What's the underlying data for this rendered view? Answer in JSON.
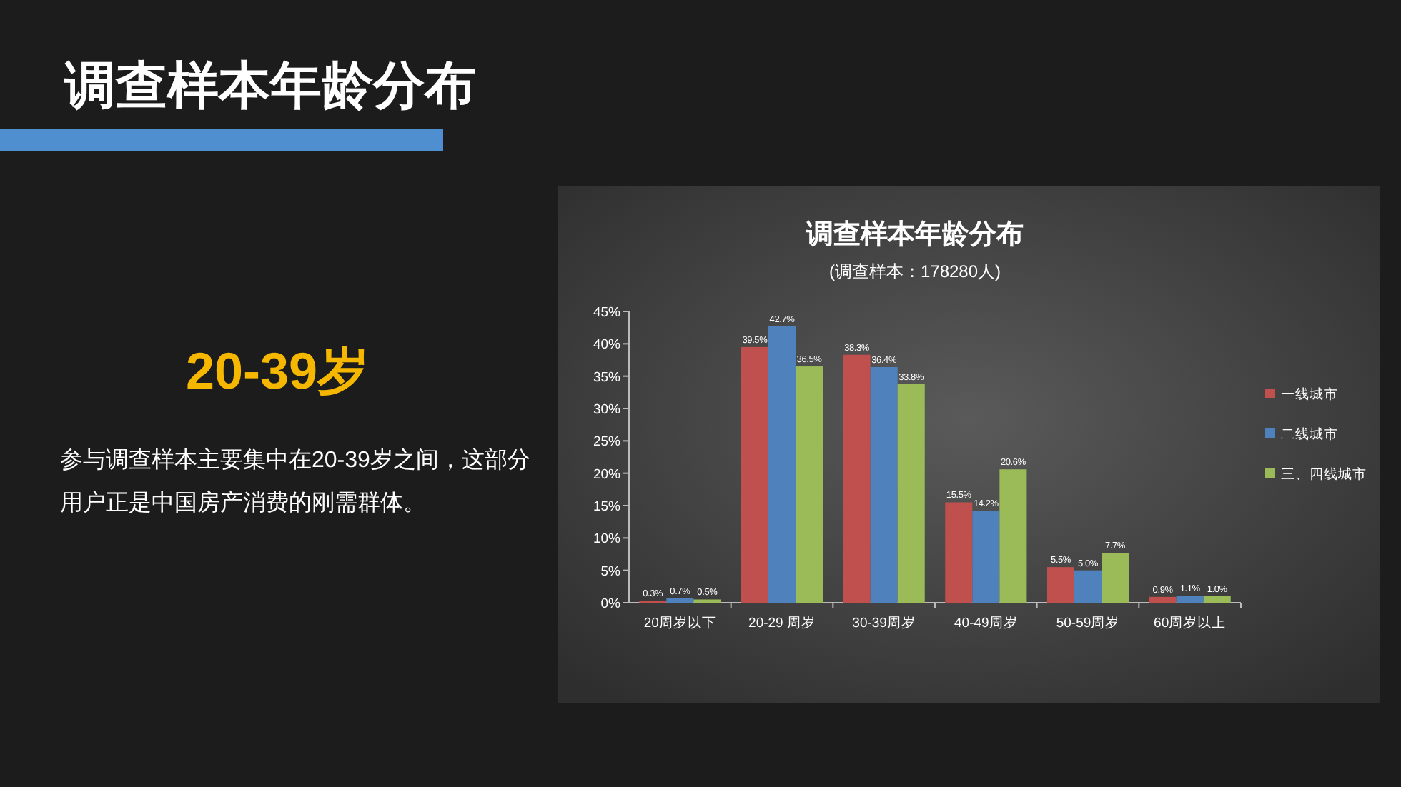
{
  "chart_data": {
    "type": "bar",
    "title": "调查样本年龄分布",
    "subtitle": "(调查样本：178280人)",
    "categories": [
      "20周岁以下",
      "20-29 周岁",
      "30-39周岁",
      "40-49周岁",
      "50-59周岁",
      "60周岁以上"
    ],
    "series": [
      {
        "name": "一线城市",
        "color": "#c0504d",
        "values": [
          0.3,
          39.5,
          38.3,
          15.5,
          5.5,
          0.9
        ],
        "value_labels": [
          "0.3%",
          "39.5%",
          "38.3%",
          "15.5%",
          "5.5%",
          "0.9%"
        ]
      },
      {
        "name": "二线城市",
        "color": "#4f81bd",
        "values": [
          0.7,
          42.7,
          36.4,
          14.2,
          5.0,
          1.1
        ],
        "value_labels": [
          "0.7%",
          "42.7%",
          "36.4%",
          "14.2%",
          "5.0%",
          "1.1%"
        ]
      },
      {
        "name": "三、四线城市",
        "color": "#9bbb59",
        "values": [
          0.5,
          36.5,
          33.8,
          20.6,
          7.7,
          1.0
        ],
        "value_labels": [
          "0.5%",
          "36.5%",
          "33.8%",
          "20.6%",
          "7.7%",
          "1.0%"
        ]
      }
    ],
    "ylim": [
      0,
      45
    ],
    "yticks": [
      {
        "value": 0,
        "label": "0%"
      },
      {
        "value": 5,
        "label": "5%"
      },
      {
        "value": 10,
        "label": "10%"
      },
      {
        "value": 15,
        "label": "15%"
      },
      {
        "value": 20,
        "label": "20%"
      },
      {
        "value": 25,
        "label": "25%"
      },
      {
        "value": 30,
        "label": "30%"
      },
      {
        "value": 35,
        "label": "35%"
      },
      {
        "value": 40,
        "label": "40%"
      },
      {
        "value": 45,
        "label": "45%"
      }
    ],
    "grid": false,
    "legend": "right",
    "annotations": [
      "调查样本年龄分布",
      "20-39岁",
      "参与调查样本主要集中在20-39岁之间，这部分用户正是中国房产消费的刚需群体。"
    ]
  }
}
